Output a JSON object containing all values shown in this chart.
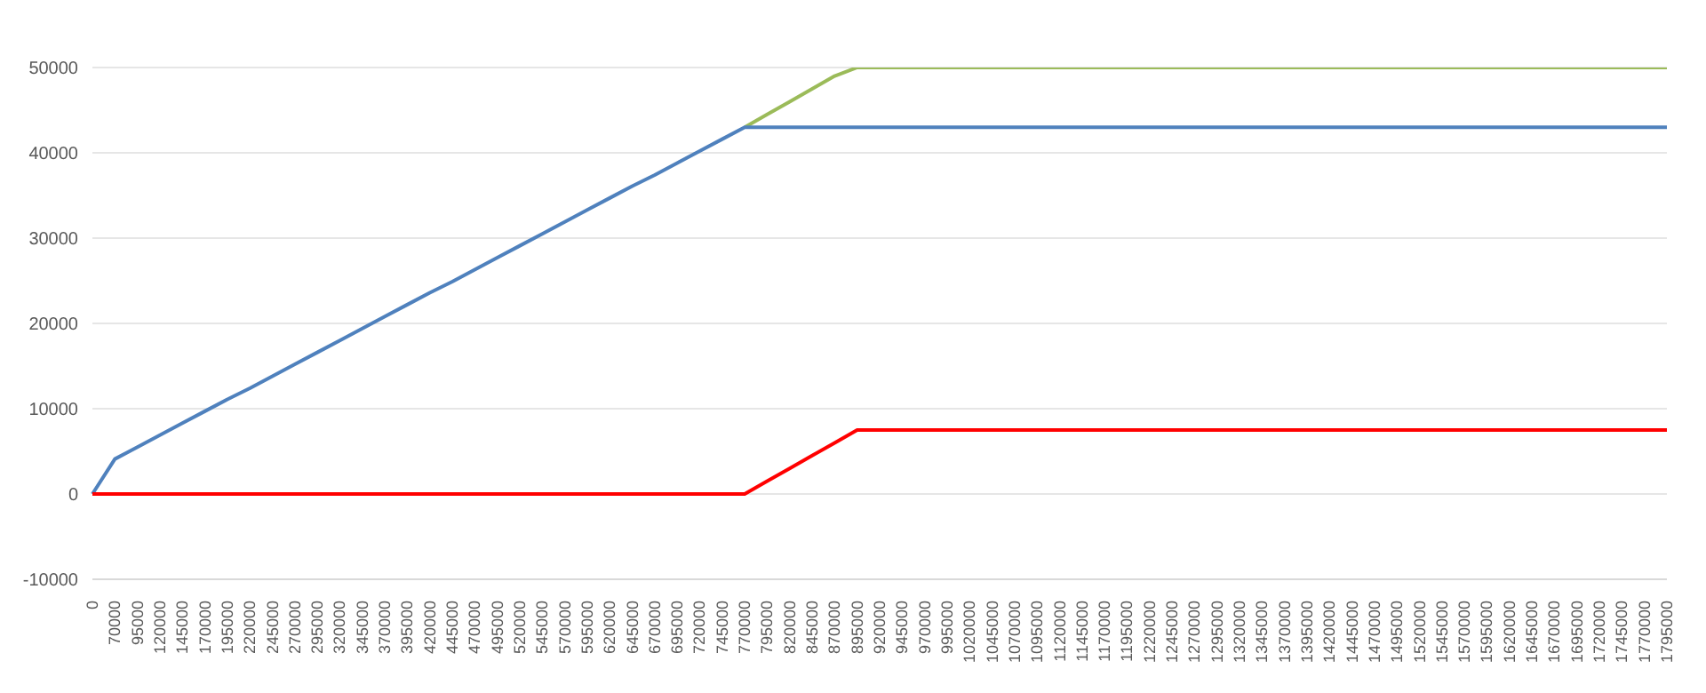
{
  "chart_data": {
    "type": "line",
    "categories": [
      "0",
      "70000",
      "95000",
      "120000",
      "145000",
      "170000",
      "195000",
      "220000",
      "245000",
      "270000",
      "295000",
      "320000",
      "345000",
      "370000",
      "395000",
      "420000",
      "445000",
      "470000",
      "495000",
      "520000",
      "545000",
      "570000",
      "595000",
      "620000",
      "645000",
      "670000",
      "695000",
      "720000",
      "745000",
      "770000",
      "795000",
      "820000",
      "845000",
      "870000",
      "895000",
      "920000",
      "945000",
      "970000",
      "995000",
      "1020000",
      "1045000",
      "1070000",
      "1095000",
      "1120000",
      "1145000",
      "1170000",
      "1195000",
      "1220000",
      "1245000",
      "1270000",
      "1295000",
      "1320000",
      "1345000",
      "1370000",
      "1395000",
      "1420000",
      "1445000",
      "1470000",
      "1495000",
      "1520000",
      "1545000",
      "1570000",
      "1595000",
      "1620000",
      "1645000",
      "1670000",
      "1695000",
      "1720000",
      "1745000",
      "1770000",
      "1795000"
    ],
    "series": [
      {
        "color": "#9bbb59",
        "values": [
          null,
          null,
          null,
          null,
          null,
          null,
          null,
          null,
          null,
          null,
          null,
          null,
          null,
          null,
          null,
          null,
          null,
          null,
          null,
          null,
          null,
          null,
          null,
          null,
          null,
          null,
          null,
          null,
          null,
          43000,
          44500,
          46000,
          47500,
          49000,
          50000,
          50000,
          50000,
          50000,
          50000,
          50000,
          50000,
          50000,
          50000,
          50000,
          50000,
          50000,
          50000,
          50000,
          50000,
          50000,
          50000,
          50000,
          50000,
          50000,
          50000,
          50000,
          50000,
          50000,
          50000,
          50000,
          50000,
          50000,
          50000,
          50000,
          50000,
          50000,
          50000,
          50000,
          50000,
          50000,
          50000
        ]
      },
      {
        "color": "#4f81bd",
        "values": [
          0,
          4100,
          5500,
          6900,
          8300,
          9700,
          11100,
          12400,
          13800,
          15200,
          16600,
          18000,
          19400,
          20800,
          22200,
          23600,
          24900,
          26300,
          27700,
          29100,
          30500,
          31900,
          33300,
          34700,
          36100,
          37400,
          38800,
          40200,
          41600,
          43000,
          43000,
          43000,
          43000,
          43000,
          43000,
          43000,
          43000,
          43000,
          43000,
          43000,
          43000,
          43000,
          43000,
          43000,
          43000,
          43000,
          43000,
          43000,
          43000,
          43000,
          43000,
          43000,
          43000,
          43000,
          43000,
          43000,
          43000,
          43000,
          43000,
          43000,
          43000,
          43000,
          43000,
          43000,
          43000,
          43000,
          43000,
          43000,
          43000,
          43000,
          43000
        ]
      },
      {
        "color": "#ff0000",
        "values": [
          0,
          0,
          0,
          0,
          0,
          0,
          0,
          0,
          0,
          0,
          0,
          0,
          0,
          0,
          0,
          0,
          0,
          0,
          0,
          0,
          0,
          0,
          0,
          0,
          0,
          0,
          0,
          0,
          0,
          0,
          1500,
          3000,
          4500,
          6000,
          7500,
          7500,
          7500,
          7500,
          7500,
          7500,
          7500,
          7500,
          7500,
          7500,
          7500,
          7500,
          7500,
          7500,
          7500,
          7500,
          7500,
          7500,
          7500,
          7500,
          7500,
          7500,
          7500,
          7500,
          7500,
          7500,
          7500,
          7500,
          7500,
          7500,
          7500,
          7500,
          7500,
          7500,
          7500,
          7500,
          7500
        ]
      }
    ],
    "ylim": [
      -10000,
      50000
    ],
    "yticks": [
      -10000,
      0,
      10000,
      20000,
      30000,
      40000,
      50000
    ],
    "grid": "y",
    "legend": false,
    "marker": "none",
    "line_style": "solid"
  }
}
